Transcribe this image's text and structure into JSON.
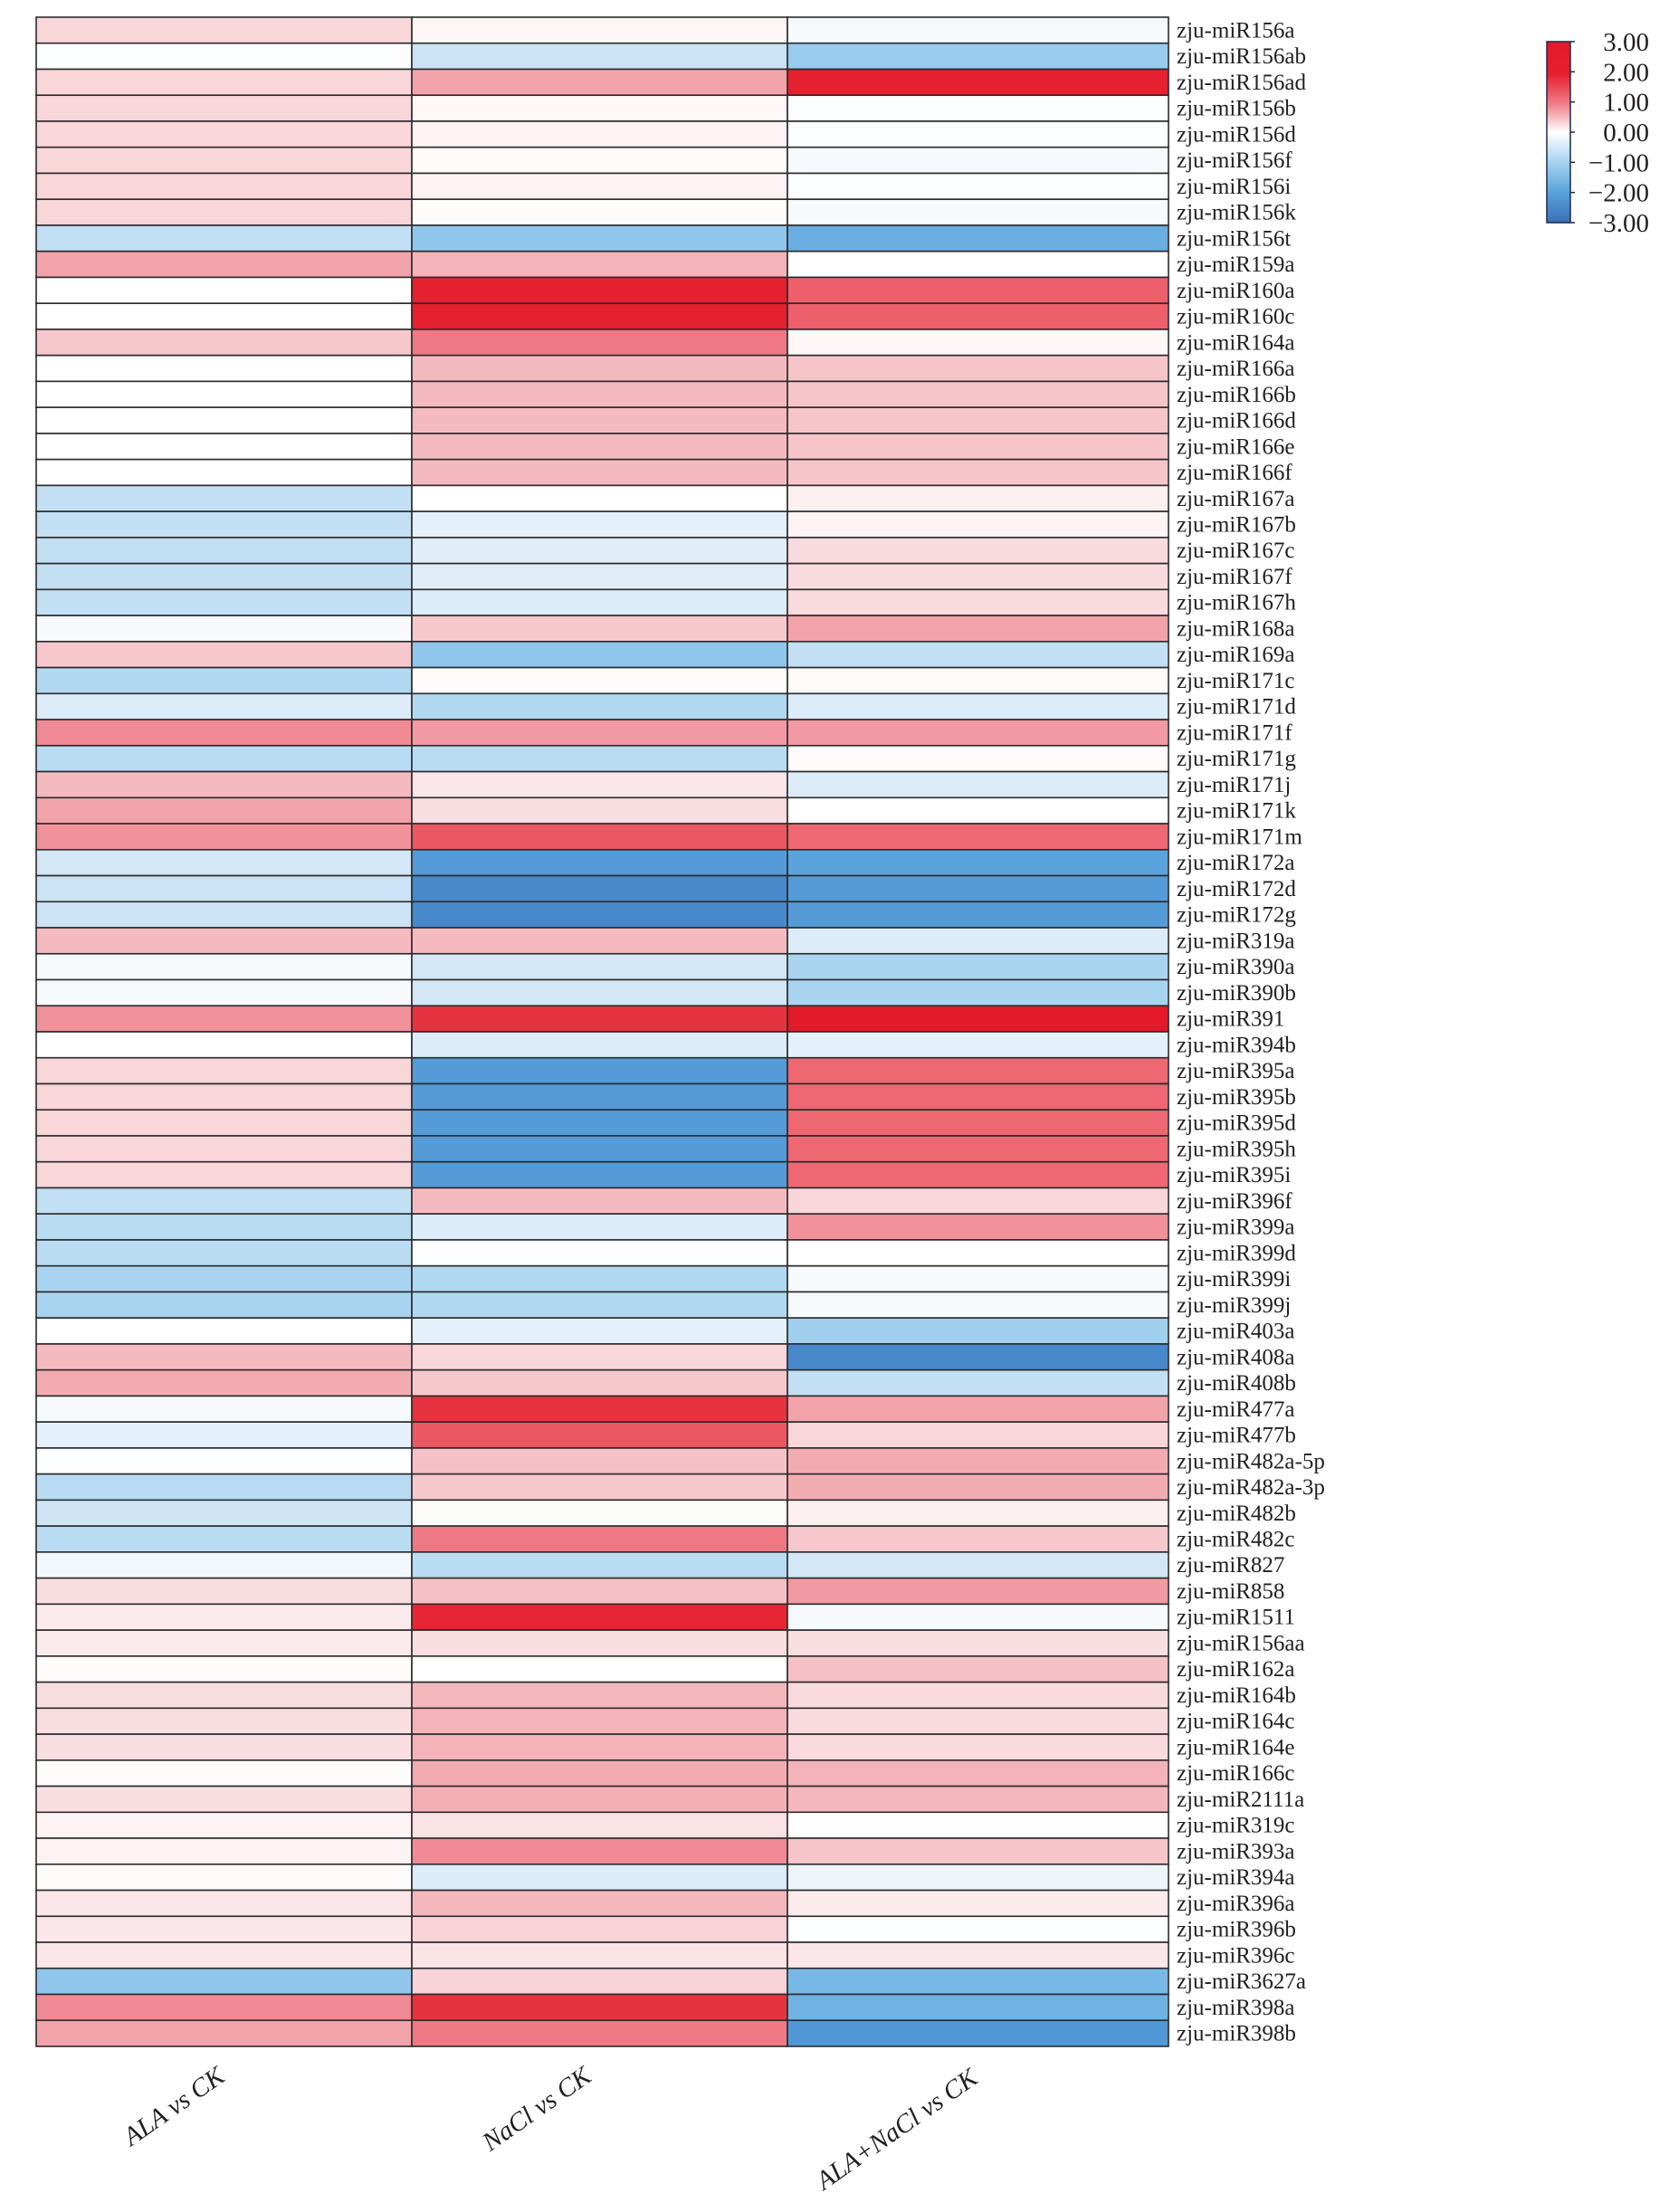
{
  "chart_data": {
    "type": "heatmap",
    "title": "",
    "columns": [
      {
        "label_pre": "ALA ",
        "label_italic": "vs",
        "label_post": " CK",
        "label": "ALA vs CK"
      },
      {
        "label_pre": "NaCl ",
        "label_italic": "vs",
        "label_post": " CK",
        "label": "NaCl vs CK"
      },
      {
        "label_pre": "ALA+NaCl ",
        "label_italic": "vs",
        "label_post": " CK",
        "label": "ALA+NaCl vs CK"
      }
    ],
    "rows": [
      "zju-miR156a",
      "zju-miR156ab",
      "zju-miR156ad",
      "zju-miR156b",
      "zju-miR156d",
      "zju-miR156f",
      "zju-miR156i",
      "zju-miR156k",
      "zju-miR156t",
      "zju-miR159a",
      "zju-miR160a",
      "zju-miR160c",
      "zju-miR164a",
      "zju-miR166a",
      "zju-miR166b",
      "zju-miR166d",
      "zju-miR166e",
      "zju-miR166f",
      "zju-miR167a",
      "zju-miR167b",
      "zju-miR167c",
      "zju-miR167f",
      "zju-miR167h",
      "zju-miR168a",
      "zju-miR169a",
      "zju-miR171c",
      "zju-miR171d",
      "zju-miR171f",
      "zju-miR171g",
      "zju-miR171j",
      "zju-miR171k",
      "zju-miR171m",
      "zju-miR172a",
      "zju-miR172d",
      "zju-miR172g",
      "zju-miR319a",
      "zju-miR390a",
      "zju-miR390b",
      "zju-miR391",
      "zju-miR394b",
      "zju-miR395a",
      "zju-miR395b",
      "zju-miR395d",
      "zju-miR395h",
      "zju-miR395i",
      "zju-miR396f",
      "zju-miR399a",
      "zju-miR399d",
      "zju-miR399i",
      "zju-miR399j",
      "zju-miR403a",
      "zju-miR408a",
      "zju-miR408b",
      "zju-miR477a",
      "zju-miR477b",
      "zju-miR482a-5p",
      "zju-miR482a-3p",
      "zju-miR482b",
      "zju-miR482c",
      "zju-miR827",
      "zju-miR858",
      "zju-miR1511",
      "zju-miR156aa",
      "zju-miR162a",
      "zju-miR164b",
      "zju-miR164c",
      "zju-miR164e",
      "zju-miR166c",
      "zju-miR2111a",
      "zju-miR319c",
      "zju-miR393a",
      "zju-miR394a",
      "zju-miR396a",
      "zju-miR396b",
      "zju-miR396c",
      "zju-miR3627a",
      "zju-miR398a",
      "zju-miR398b"
    ],
    "values": [
      [
        0.5,
        0.1,
        -0.1
      ],
      [
        -0.05,
        -0.6,
        -1.2
      ],
      [
        0.5,
        1.2,
        2.9
      ],
      [
        0.5,
        0.1,
        -0.05
      ],
      [
        0.5,
        0.15,
        -0.05
      ],
      [
        0.5,
        0.05,
        -0.1
      ],
      [
        0.5,
        0.15,
        -0.05
      ],
      [
        0.5,
        0.05,
        -0.1
      ],
      [
        -0.7,
        -1.3,
        -1.8
      ],
      [
        1.2,
        1.0,
        0.0
      ],
      [
        0.0,
        2.9,
        2.0
      ],
      [
        0.0,
        2.9,
        2.0
      ],
      [
        0.7,
        1.7,
        0.1
      ],
      [
        0.0,
        0.9,
        0.75
      ],
      [
        0.0,
        0.9,
        0.75
      ],
      [
        0.0,
        0.9,
        0.75
      ],
      [
        0.0,
        0.9,
        0.75
      ],
      [
        0.0,
        0.9,
        0.75
      ],
      [
        -0.7,
        0.0,
        0.2
      ],
      [
        -0.7,
        -0.3,
        0.15
      ],
      [
        -0.7,
        -0.35,
        0.45
      ],
      [
        -0.7,
        -0.35,
        0.45
      ],
      [
        -0.7,
        -0.4,
        0.45
      ],
      [
        -0.1,
        0.7,
        1.2
      ],
      [
        0.7,
        -1.3,
        -0.7
      ],
      [
        -0.9,
        0.05,
        0.05
      ],
      [
        -0.4,
        -0.9,
        -0.4
      ],
      [
        1.5,
        1.3,
        1.3
      ],
      [
        -0.8,
        -0.8,
        0.05
      ],
      [
        0.9,
        0.3,
        -0.4
      ],
      [
        1.2,
        0.4,
        0.0
      ],
      [
        1.4,
        2.1,
        1.9
      ],
      [
        -0.5,
        -2.2,
        -2.0
      ],
      [
        -0.6,
        -2.6,
        -2.2
      ],
      [
        -0.6,
        -2.6,
        -2.2
      ],
      [
        0.9,
        0.9,
        -0.4
      ],
      [
        -0.1,
        -0.5,
        -1.0
      ],
      [
        -0.1,
        -0.5,
        -1.0
      ],
      [
        1.4,
        2.6,
        3.0
      ],
      [
        0.0,
        -0.4,
        -0.3
      ],
      [
        0.5,
        -2.2,
        1.9
      ],
      [
        0.5,
        -2.2,
        1.9
      ],
      [
        0.5,
        -2.2,
        1.9
      ],
      [
        0.5,
        -2.2,
        1.9
      ],
      [
        0.5,
        -2.2,
        1.9
      ],
      [
        -0.7,
        0.9,
        0.5
      ],
      [
        -0.8,
        -0.4,
        1.4
      ],
      [
        -0.8,
        -0.05,
        0.0
      ],
      [
        -1.0,
        -0.9,
        -0.1
      ],
      [
        -1.0,
        -0.9,
        -0.1
      ],
      [
        0.0,
        -0.3,
        -1.1
      ],
      [
        0.9,
        0.5,
        -2.6
      ],
      [
        1.1,
        0.7,
        -0.7
      ],
      [
        -0.1,
        2.6,
        1.2
      ],
      [
        -0.3,
        2.1,
        0.5
      ],
      [
        -0.05,
        0.8,
        1.1
      ],
      [
        -0.8,
        0.7,
        1.1
      ],
      [
        -0.55,
        0.05,
        0.2
      ],
      [
        -0.8,
        1.7,
        0.7
      ],
      [
        -0.15,
        -0.8,
        -0.5
      ],
      [
        0.4,
        0.8,
        1.3
      ],
      [
        0.25,
        2.8,
        -0.1
      ],
      [
        0.25,
        0.4,
        0.4
      ],
      [
        0.05,
        0.0,
        0.8
      ],
      [
        0.4,
        0.95,
        0.45
      ],
      [
        0.4,
        1.0,
        0.45
      ],
      [
        0.4,
        1.0,
        0.45
      ],
      [
        0.05,
        1.1,
        1.0
      ],
      [
        0.4,
        1.05,
        0.95
      ],
      [
        0.15,
        0.35,
        0.0
      ],
      [
        0.15,
        1.5,
        0.75
      ],
      [
        0.05,
        -0.4,
        -0.2
      ],
      [
        0.3,
        0.95,
        0.25
      ],
      [
        0.3,
        0.55,
        -0.05
      ],
      [
        0.3,
        0.35,
        0.3
      ],
      [
        -1.3,
        0.55,
        -1.6
      ],
      [
        1.5,
        2.6,
        -1.7
      ],
      [
        1.2,
        1.7,
        -2.3
      ]
    ],
    "colorbar": {
      "min": -3.0,
      "max": 3.0,
      "ticks": [
        "3.00",
        "2.00",
        "1.00",
        "0.00",
        "−1.00",
        "−2.00",
        "−3.00"
      ],
      "tick_values": [
        3,
        2,
        1,
        0,
        -1,
        -2,
        -3
      ],
      "colors": {
        "low": "#3b7cc2",
        "mid_low": "#8cc4ea",
        "mid": "#ffffff",
        "mid_high": "#f08a94",
        "high": "#e41a2a"
      }
    },
    "legend_position": "top-right",
    "grid": true
  }
}
